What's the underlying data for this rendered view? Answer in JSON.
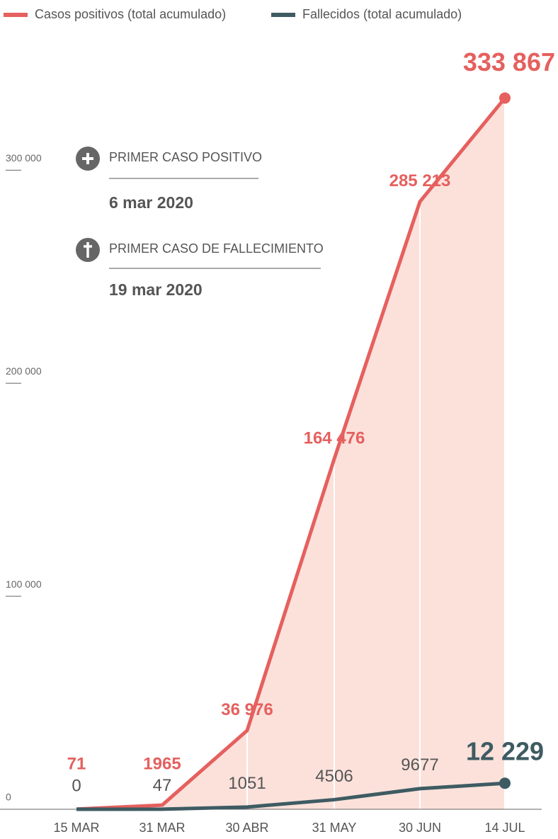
{
  "chart_data": {
    "type": "line",
    "categories": [
      "15 MAR",
      "31 MAR",
      "30 ABR",
      "31 MAY",
      "30 JUN",
      "14 JUL"
    ],
    "series": [
      {
        "name": "Casos positivos (total acumulado)",
        "color": "#e5605e",
        "area_color": "#fce1db",
        "values": [
          71,
          1965,
          36976,
          164476,
          285213,
          333867
        ],
        "value_labels": [
          "71",
          "1965",
          "36 976",
          "164 476",
          "285 213",
          "333 867"
        ]
      },
      {
        "name": "Fallecidos (total acumulado)",
        "color": "#3e5b62",
        "values": [
          0,
          47,
          1051,
          4506,
          9677,
          12229
        ],
        "value_labels": [
          "0",
          "47",
          "1051",
          "4506",
          "9677",
          "12 229"
        ]
      }
    ],
    "ylim": [
      0,
      340000
    ],
    "yticks": [
      {
        "value": 0,
        "label": "0"
      },
      {
        "value": 100000,
        "label": "100 000"
      },
      {
        "value": 200000,
        "label": "200 000"
      },
      {
        "value": 300000,
        "label": "300 000"
      }
    ],
    "annotations": [
      {
        "title": "PRIMER CASO POSITIVO",
        "date": "6 mar 2020"
      },
      {
        "title": "PRIMER CASO DE FALLECIMIENTO",
        "date": "19 mar 2020"
      }
    ]
  }
}
